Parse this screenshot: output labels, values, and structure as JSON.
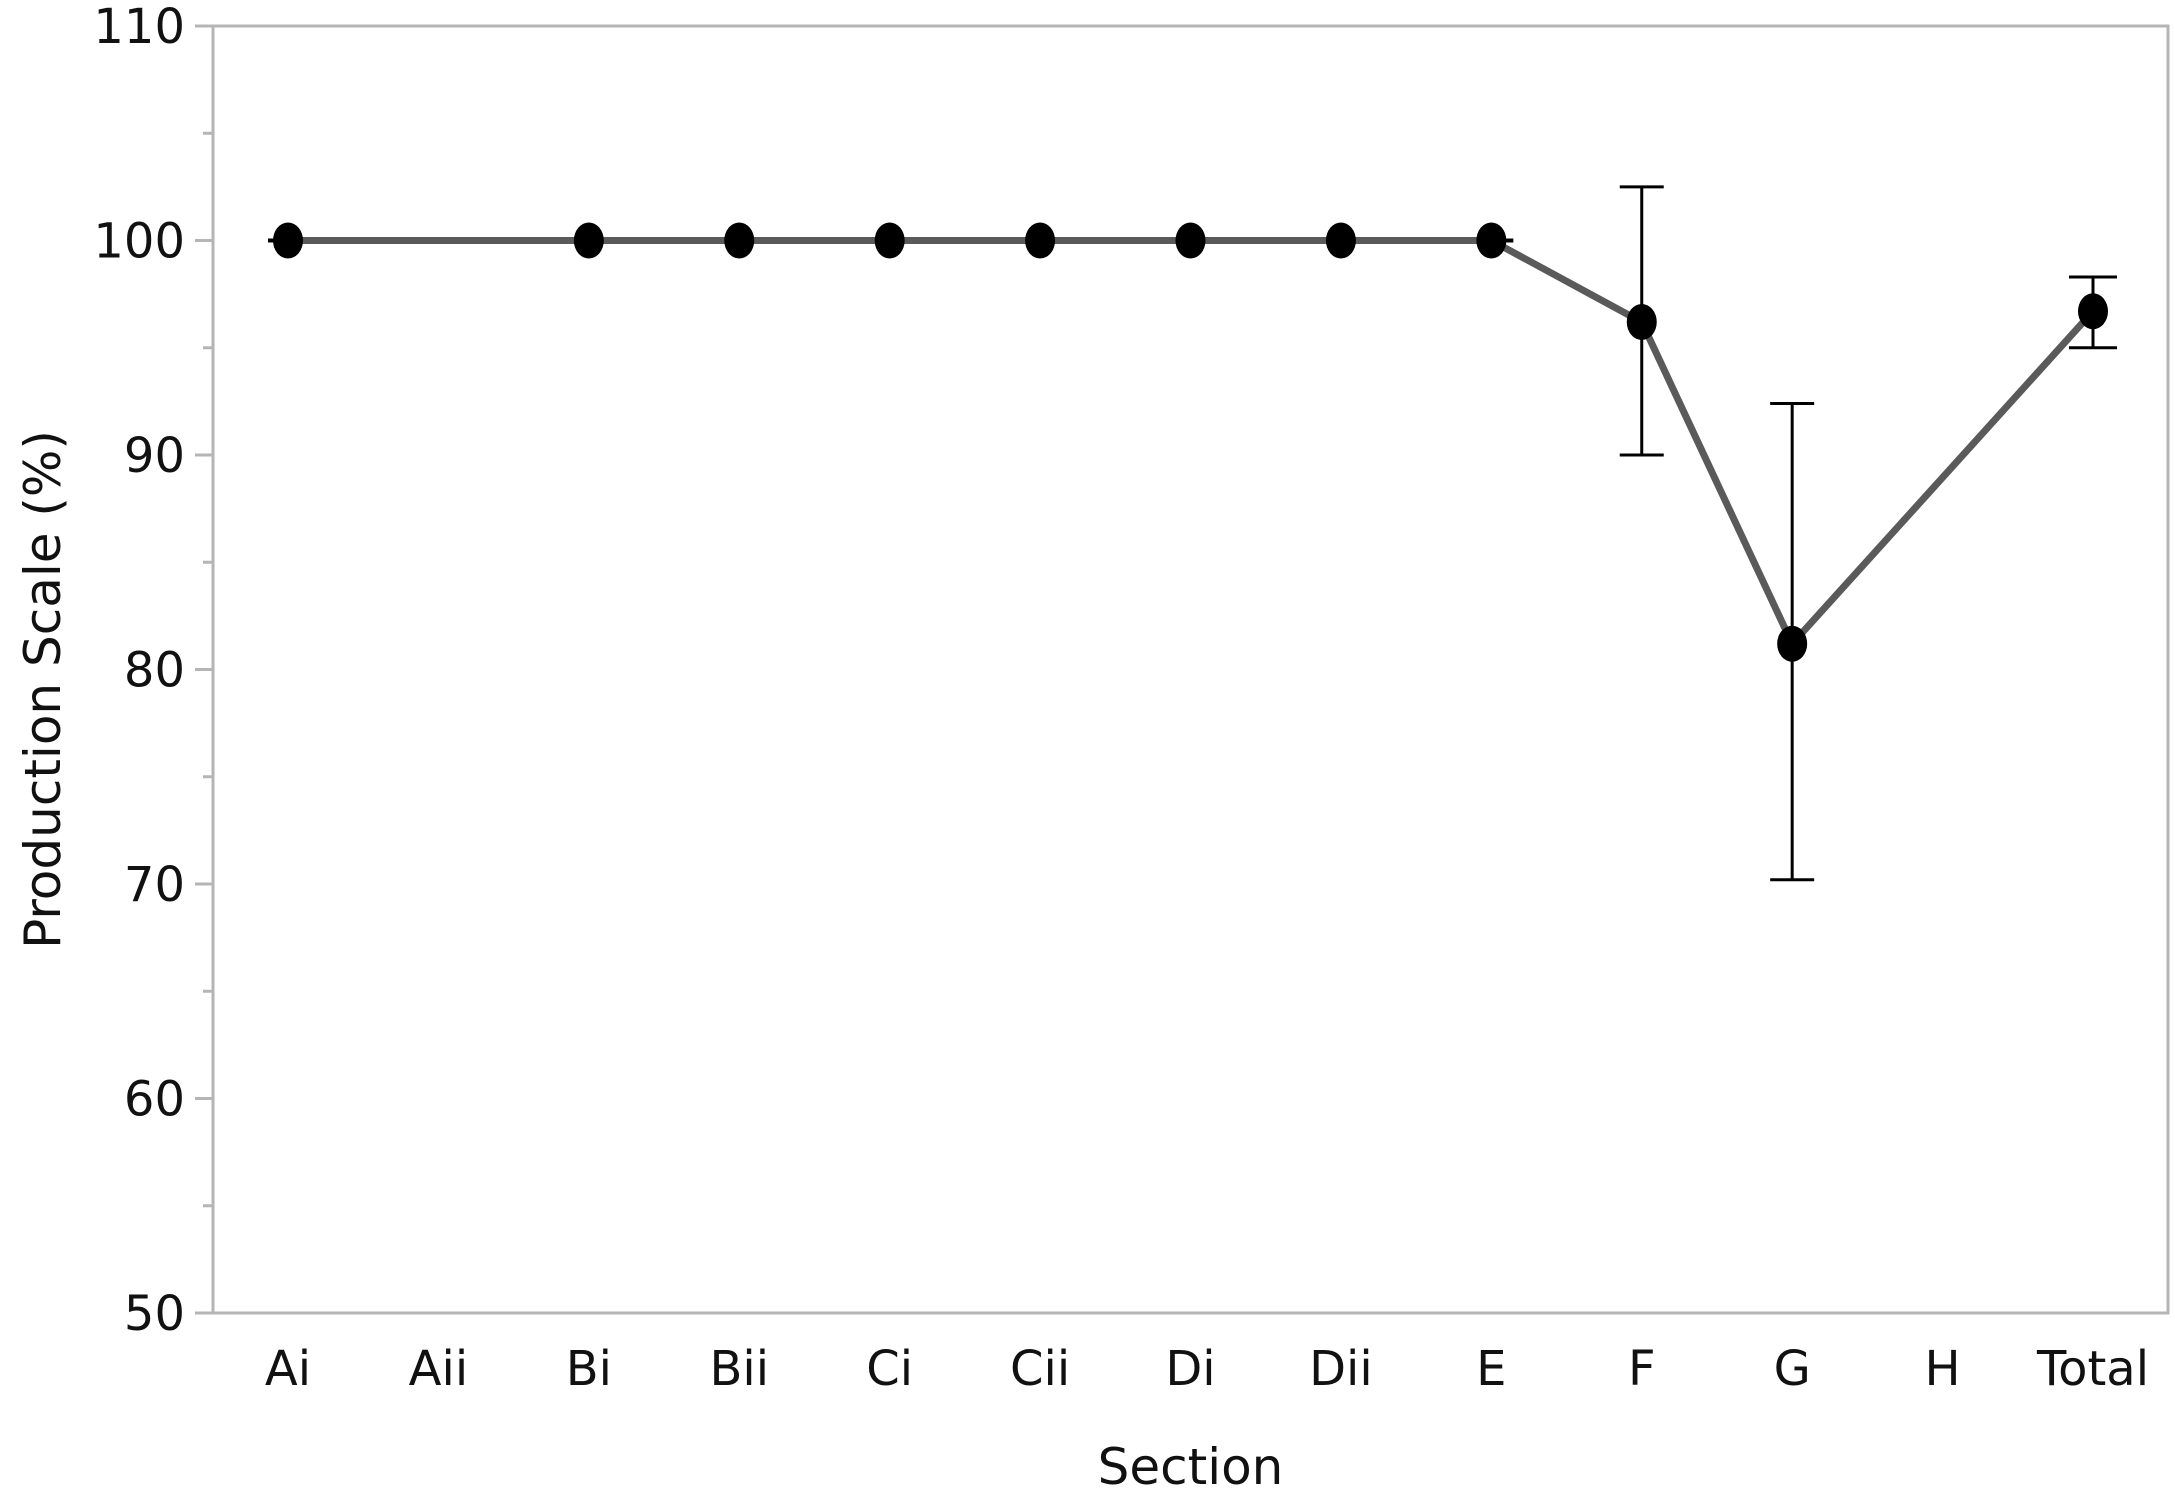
{
  "chart_data": {
    "type": "line",
    "title": "",
    "xlabel": "Section",
    "ylabel": "Production Scale (%)",
    "categories": [
      "Ai",
      "Aii",
      "Bi",
      "Bii",
      "Ci",
      "Cii",
      "Di",
      "Dii",
      "E",
      "F",
      "G",
      "H",
      "Total"
    ],
    "ylim": [
      50,
      110
    ],
    "y_major_ticks": [
      50,
      60,
      70,
      80,
      90,
      100,
      110
    ],
    "y_minor_ticks": [
      55,
      65,
      75,
      85,
      95,
      105
    ],
    "grid": false,
    "legend": "none",
    "series": [
      {
        "values": [
          100,
          null,
          100,
          100,
          100,
          100,
          100,
          100,
          100,
          96.2,
          81.2,
          null,
          96.7
        ],
        "error_low": [
          null,
          null,
          null,
          null,
          null,
          null,
          null,
          null,
          null,
          90.0,
          70.2,
          null,
          95.0
        ],
        "error_high": [
          null,
          null,
          null,
          null,
          null,
          null,
          null,
          null,
          null,
          102.5,
          92.4,
          null,
          98.3
        ],
        "line_color": "#5a5a5a",
        "marker_color": "#000000"
      }
    ],
    "colors": {
      "axis": "#b5b5b5",
      "text": "#111111",
      "errorbar": "#000000"
    }
  }
}
